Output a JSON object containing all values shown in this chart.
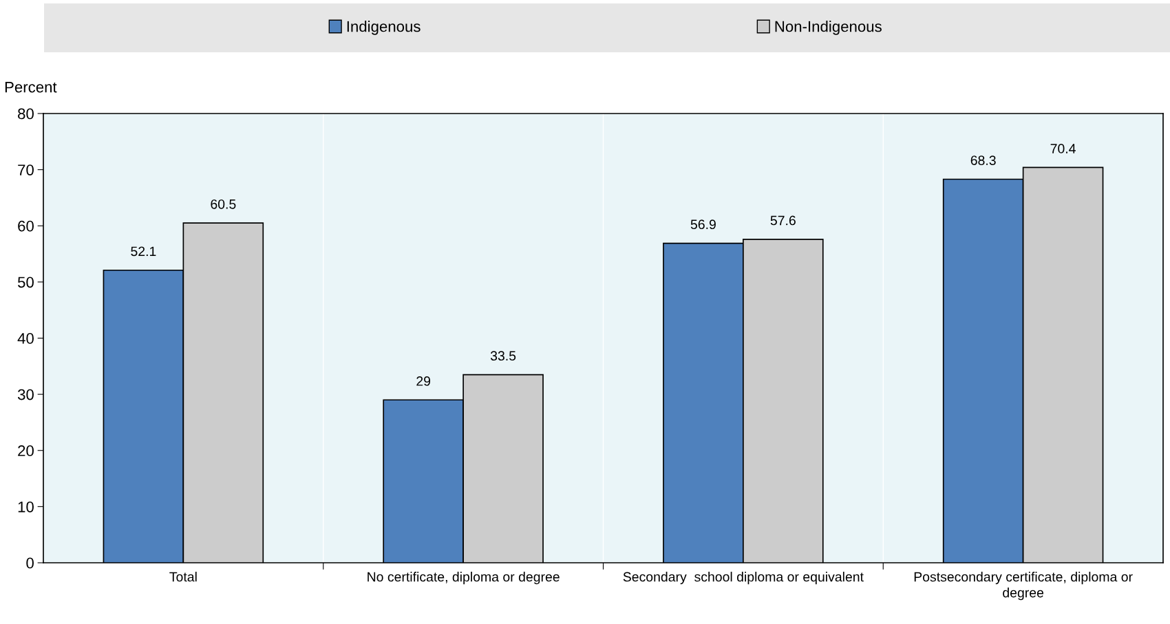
{
  "chart_data": {
    "type": "bar",
    "ylabel": "Percent",
    "categories": [
      "Total",
      "No certificate, diploma or degree",
      "Secondary  school diploma or equivalent",
      "Postsecondary certificate, diploma or degree"
    ],
    "series": [
      {
        "name": "Indigenous",
        "color": "#4f81bd",
        "values": [
          52.1,
          29,
          56.9,
          68.3
        ]
      },
      {
        "name": "Non-Indigenous",
        "color": "#cccccc",
        "values": [
          60.5,
          33.5,
          57.6,
          70.4
        ]
      }
    ],
    "ylim": [
      0,
      80
    ],
    "yticks": [
      0,
      10,
      20,
      30,
      40,
      50,
      60,
      70,
      80
    ],
    "data_labels": true,
    "legend": "top",
    "grid": false
  }
}
